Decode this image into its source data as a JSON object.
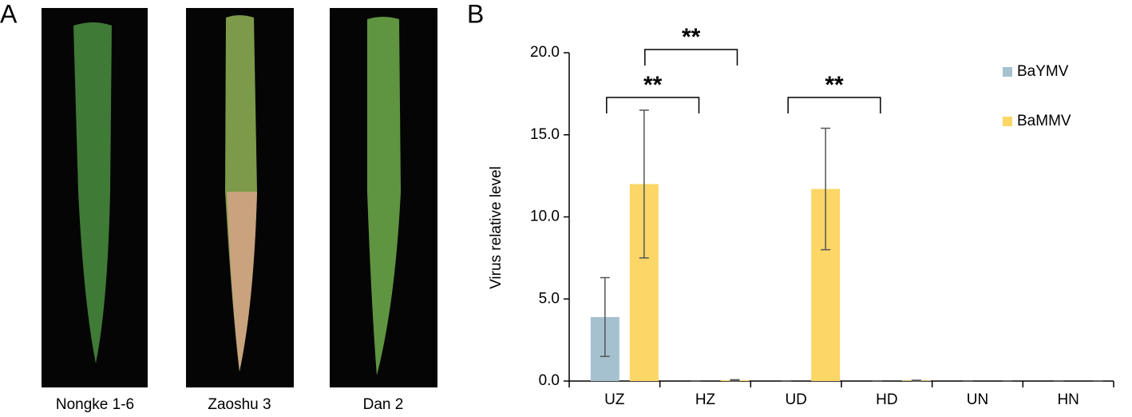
{
  "panel_a": {
    "letter": "A",
    "labels": [
      "Nongke 1-6",
      "Zaoshu 3",
      "Dan 2"
    ]
  },
  "chart_data": {
    "type": "bar",
    "letter": "B",
    "y_label": "Virus relative level",
    "categories": [
      "UZ",
      "HZ",
      "UD",
      "HD",
      "UN",
      "HN"
    ],
    "series": [
      {
        "name": "BaYMV",
        "color": "#a5c1cf",
        "values": [
          3.9,
          0,
          0,
          0,
          0,
          0
        ],
        "errors": [
          2.4,
          0,
          0,
          0,
          0,
          0
        ]
      },
      {
        "name": "BaMMV",
        "color": "#fcd667",
        "values": [
          12.0,
          0.05,
          11.7,
          0.03,
          0,
          0
        ],
        "errors": [
          4.5,
          0.03,
          3.7,
          0.02,
          0,
          0
        ]
      }
    ],
    "ylim": [
      0,
      20
    ],
    "yticks": [
      {
        "value": 0,
        "label": "0.0"
      },
      {
        "value": 5,
        "label": "5.0"
      },
      {
        "value": 10,
        "label": "10.0"
      },
      {
        "value": 15,
        "label": "15.0"
      },
      {
        "value": 20,
        "label": "20.0"
      }
    ],
    "annotations": [
      {
        "text": "**",
        "from": "UZ",
        "to": "HZ"
      },
      {
        "text": "**",
        "from": "UZ",
        "to": "HZ"
      },
      {
        "text": "**",
        "from": "UD",
        "to": "HD"
      }
    ]
  }
}
